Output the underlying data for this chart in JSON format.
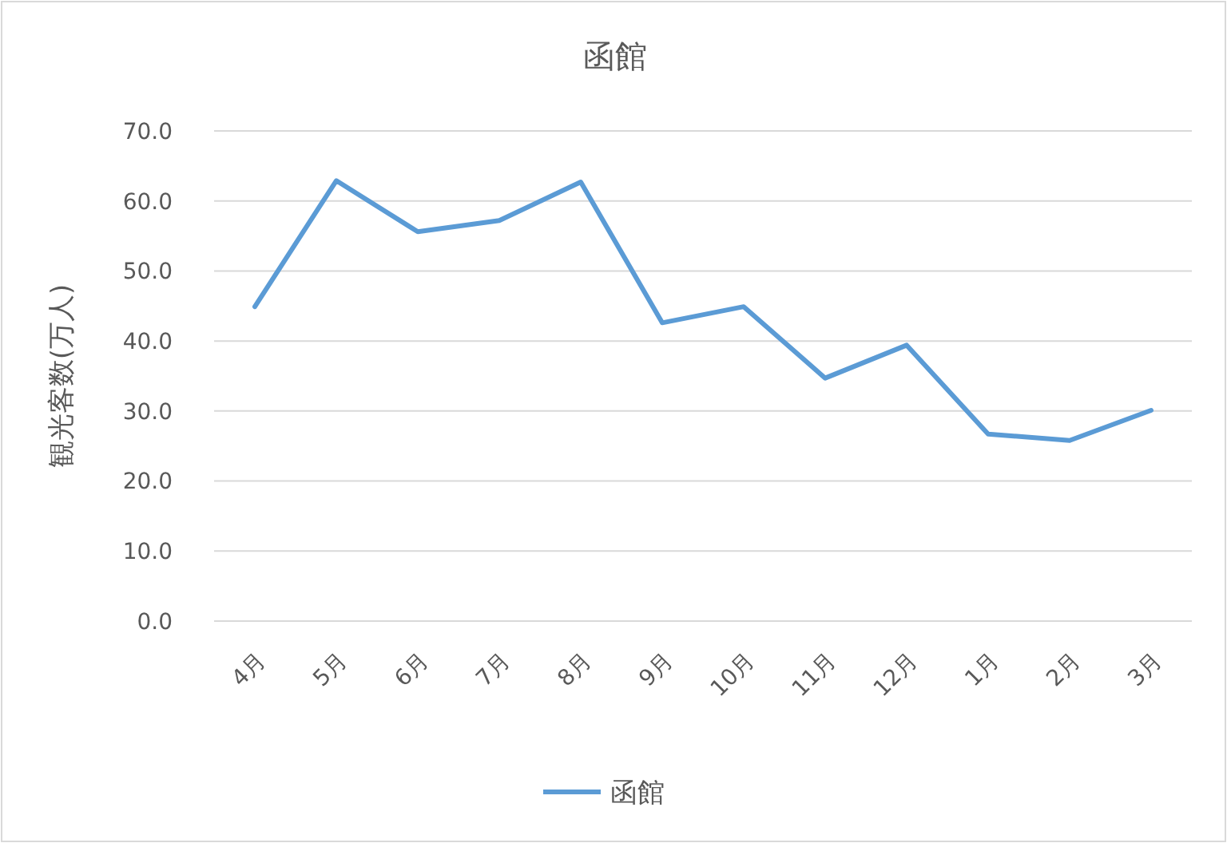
{
  "chart_data": {
    "type": "line",
    "title": "函館",
    "ylabel": "観光客数(万人)",
    "categories": [
      "4月",
      "5月",
      "6月",
      "7月",
      "8月",
      "9月",
      "10月",
      "11月",
      "12月",
      "1月",
      "2月",
      "3月"
    ],
    "series": [
      {
        "name": "函館",
        "color": "#5b9bd5",
        "values": [
          44.9,
          62.9,
          55.6,
          57.2,
          62.7,
          42.6,
          44.9,
          34.7,
          39.4,
          26.7,
          25.8,
          30.1
        ]
      }
    ],
    "ylim": [
      0,
      70
    ],
    "yticks": [
      {
        "value": 0,
        "label": "0.0"
      },
      {
        "value": 10,
        "label": "10.0"
      },
      {
        "value": 20,
        "label": "20.0"
      },
      {
        "value": 30,
        "label": "30.0"
      },
      {
        "value": 40,
        "label": "40.0"
      },
      {
        "value": 50,
        "label": "50.0"
      },
      {
        "value": 60,
        "label": "60.0"
      },
      {
        "value": 70,
        "label": "70.0"
      }
    ],
    "grid": "y",
    "legend": "bottom",
    "marker": "none",
    "line_style": "solid"
  }
}
